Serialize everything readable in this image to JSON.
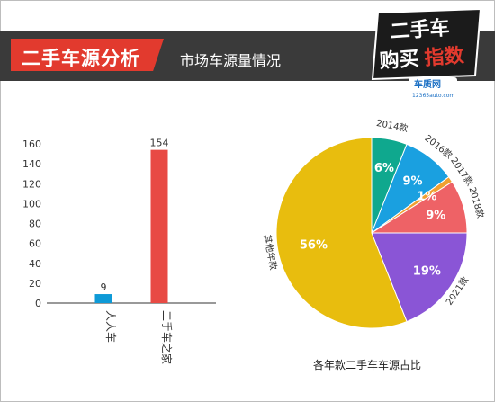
{
  "header": {
    "section_title": "二手车源分析",
    "subtitle": "市场车源量情况"
  },
  "logo": {
    "line1": "二手车",
    "line2a": "购买",
    "line2b": "指数",
    "brand": "车质网",
    "url": "12365auto.com"
  },
  "colors": {
    "header_band": "#3a3a3a",
    "accent_red": "#e23a2e",
    "bar_blue": "#0e9ad7",
    "bar_red": "#e84a44"
  },
  "chart_data": [
    {
      "type": "bar",
      "categories": [
        "人人车",
        "二手车之家"
      ],
      "values": [
        9,
        154
      ],
      "colors": [
        "#0e9ad7",
        "#e84a44"
      ],
      "ylim": [
        0,
        160
      ],
      "yticks": [
        0,
        20,
        40,
        60,
        80,
        100,
        120,
        140,
        160
      ],
      "grid": false
    },
    {
      "type": "pie",
      "title": "各年款二手车车源占比",
      "slices": [
        {
          "label": "2014款",
          "value": 6,
          "display": "6%",
          "color": "#0fa88e"
        },
        {
          "label": "2016款",
          "value": 9,
          "display": "9%",
          "color": "#1aa0e0"
        },
        {
          "label": "2017款",
          "value": 1,
          "display": "1%",
          "color": "#f0a030"
        },
        {
          "label": "2018款",
          "value": 9,
          "display": "9%",
          "color": "#ee6266"
        },
        {
          "label": "2021款",
          "value": 19,
          "display": "19%",
          "color": "#8a55d6"
        },
        {
          "label": "其他年款",
          "value": 56,
          "display": "56%",
          "color": "#e8bd0e"
        }
      ]
    }
  ]
}
